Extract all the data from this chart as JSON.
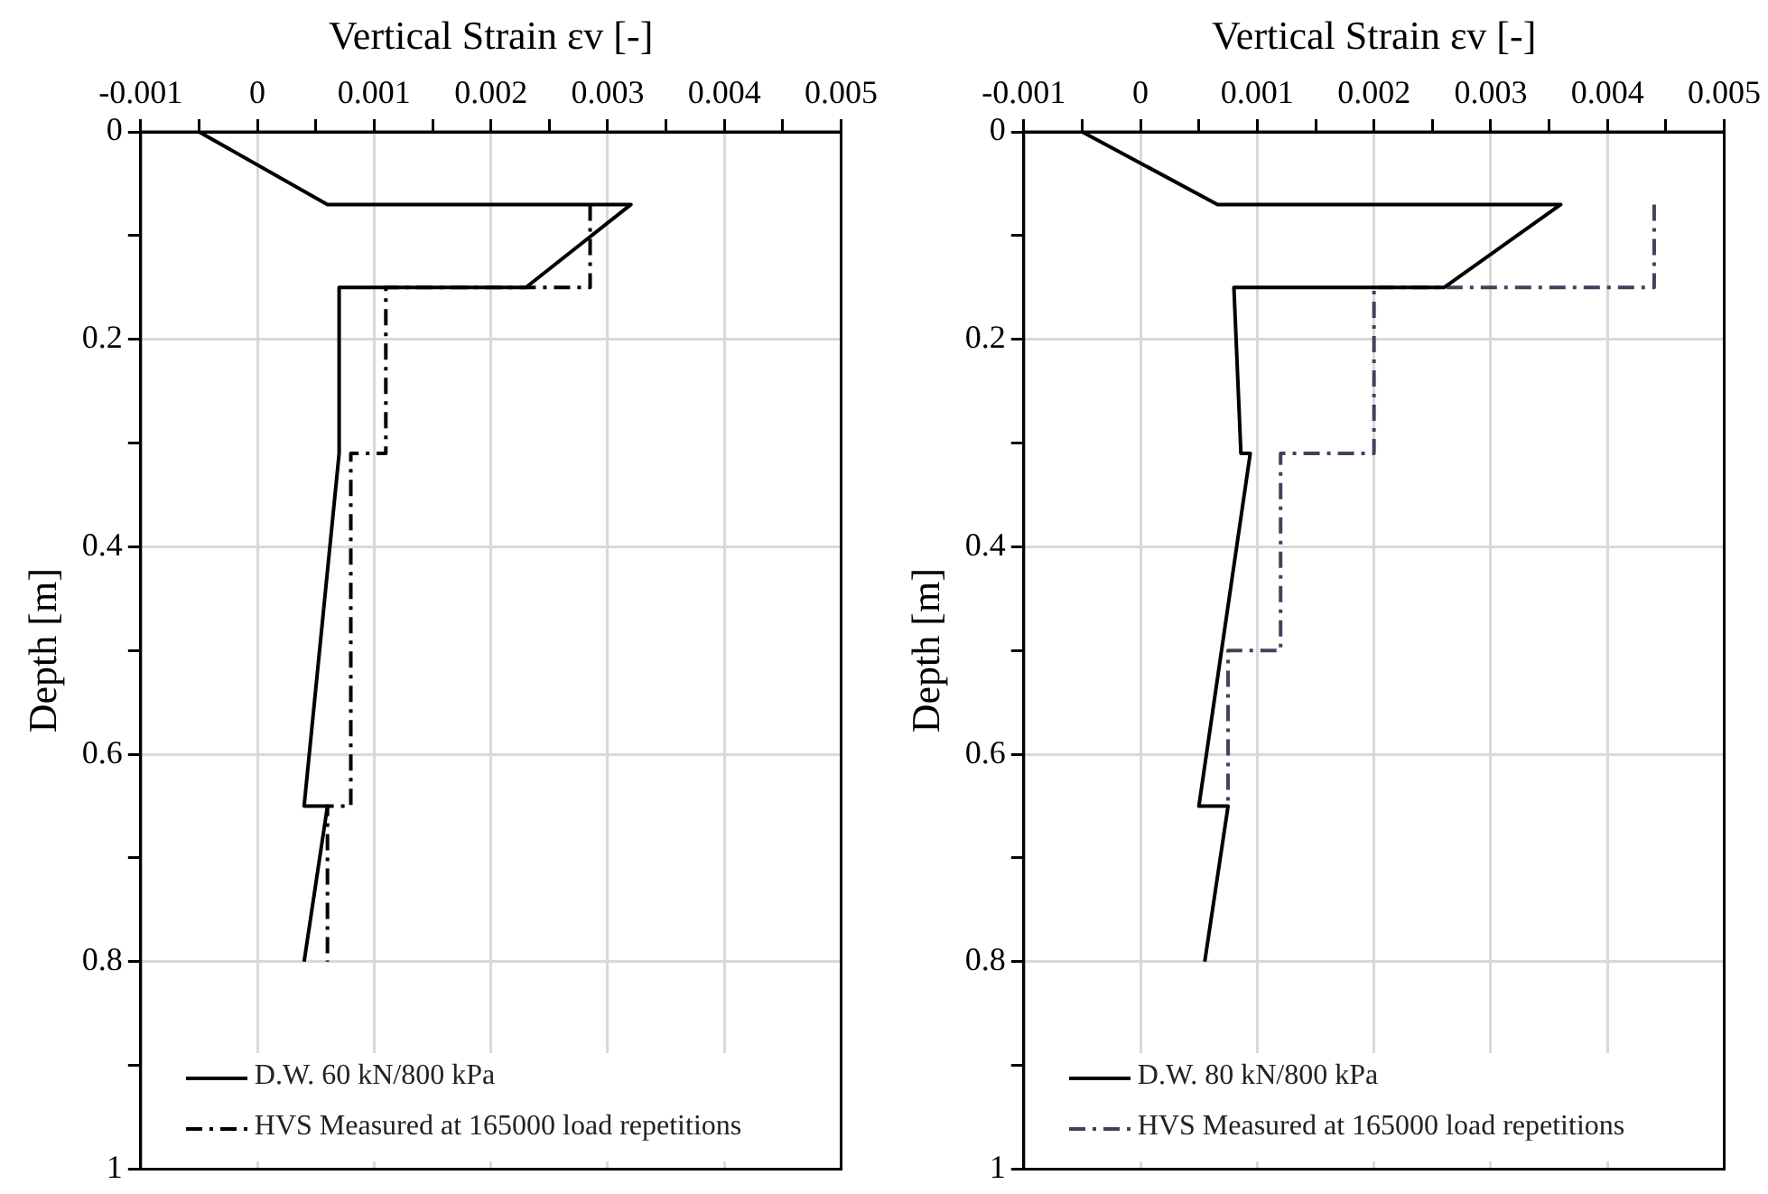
{
  "chart_data": [
    {
      "type": "line",
      "xlabel": "Vertical Strain εv [-]",
      "ylabel": "Depth [m]",
      "xlim": [
        -0.001,
        0.005
      ],
      "ylim": [
        1,
        0
      ],
      "xticks": [
        -0.001,
        {
          "value": -0.0005,
          "label": null
        },
        0,
        {
          "value": 0.0005,
          "label": null
        },
        0.001,
        {
          "value": 0.0015,
          "label": null
        },
        0.002,
        {
          "value": 0.0025,
          "label": null
        },
        0.003,
        {
          "value": 0.0035,
          "label": null
        },
        0.004,
        {
          "value": 0.0045,
          "label": null
        },
        0.005
      ],
      "yticks": [
        0,
        {
          "value": 0.1,
          "label": null
        },
        0.2,
        {
          "value": 0.3,
          "label": null
        },
        0.4,
        {
          "value": 0.5,
          "label": null
        },
        0.6,
        {
          "value": 0.7,
          "label": null
        },
        0.8,
        {
          "value": 0.9,
          "label": null
        },
        1
      ],
      "grid": true,
      "legend": "bottom",
      "marker": "none",
      "series": [
        {
          "name": "D.W. 60 kN/800 kPa",
          "color": "#000000",
          "line_style": "solid",
          "x": [
            -0.0005,
            0.0006,
            0.0032,
            0.0023,
            0.0007,
            0.0007,
            0.0004,
            0.0006,
            0.0004
          ],
          "values": [
            0,
            0.07,
            0.07,
            0.15,
            0.15,
            0.31,
            0.65,
            0.65,
            0.8
          ]
        },
        {
          "name": "HVS Measured at 165000 load repetitions",
          "color": "#000000",
          "line_style": "dashdot",
          "x": [
            0.00285,
            0.00285,
            0.0011,
            0.0011,
            0.0008,
            0.0008,
            0.0006,
            0.0006
          ],
          "values": [
            0.07,
            0.15,
            0.15,
            0.31,
            0.31,
            0.65,
            0.65,
            0.8
          ]
        }
      ]
    },
    {
      "type": "line",
      "xlabel": "Vertical Strain εv [-]",
      "ylabel": "Depth [m]",
      "xlim": [
        -0.001,
        0.005
      ],
      "ylim": [
        1,
        0
      ],
      "xticks": [
        -0.001,
        {
          "value": -0.0005,
          "label": null
        },
        0,
        {
          "value": 0.0005,
          "label": null
        },
        0.001,
        {
          "value": 0.0015,
          "label": null
        },
        0.002,
        {
          "value": 0.0025,
          "label": null
        },
        0.003,
        {
          "value": 0.0035,
          "label": null
        },
        0.004,
        {
          "value": 0.0045,
          "label": null
        },
        0.005
      ],
      "yticks": [
        0,
        {
          "value": 0.1,
          "label": null
        },
        0.2,
        {
          "value": 0.3,
          "label": null
        },
        0.4,
        {
          "value": 0.5,
          "label": null
        },
        0.6,
        {
          "value": 0.7,
          "label": null
        },
        0.8,
        {
          "value": 0.9,
          "label": null
        },
        1
      ],
      "grid": true,
      "legend": "bottom",
      "marker": "none",
      "series": [
        {
          "name": "D.W. 80 kN/800 kPa",
          "color": "#000000",
          "line_style": "solid",
          "x": [
            -0.0005,
            0.00066,
            0.0036,
            0.0026,
            0.0008,
            0.00086,
            0.00094,
            0.0005,
            0.00075,
            0.00055
          ],
          "values": [
            0,
            0.07,
            0.07,
            0.15,
            0.15,
            0.31,
            0.31,
            0.65,
            0.65,
            0.8
          ]
        },
        {
          "name": "HVS Measured at 165000 load repetitions",
          "color": "#4a3d5c",
          "line_style": "dashdot",
          "x": [
            0.0044,
            0.0044,
            0.002,
            0.002,
            0.0012,
            0.0012,
            0.00075,
            0.00075
          ],
          "values": [
            0.07,
            0.15,
            0.15,
            0.31,
            0.31,
            0.5,
            0.5,
            0.65
          ]
        }
      ]
    }
  ]
}
